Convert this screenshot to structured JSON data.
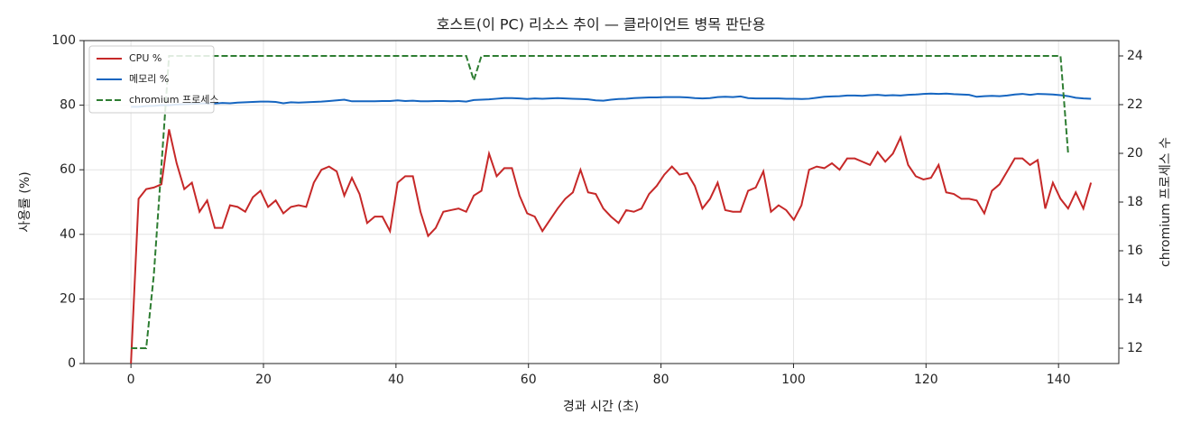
{
  "chart_data": {
    "type": "line",
    "title": "호스트(이 PC) 리소스 추이 — 클라이언트 병목 판단용",
    "xlabel": "경과 시간 (초)",
    "ylabel": "사용률 (%)",
    "y2label": "chromium 프로세스 수",
    "xlim": [
      -7.1,
      149.1
    ],
    "ylim": [
      0,
      100
    ],
    "y2lim": [
      11.37,
      24.63
    ],
    "xticks": [
      0,
      20,
      40,
      60,
      80,
      100,
      120,
      140
    ],
    "yticks": [
      0,
      20,
      40,
      60,
      80,
      100
    ],
    "y2ticks": [
      12,
      14,
      16,
      18,
      20,
      22,
      24
    ],
    "grid": true,
    "legend": "upper-left",
    "x": [
      0,
      1.15,
      2.3,
      3.45,
      4.6,
      5.75,
      6.9,
      8.05,
      9.2,
      10.35,
      11.5,
      12.65,
      13.8,
      14.95,
      16.1,
      17.25,
      18.4,
      19.55,
      20.7,
      21.85,
      23,
      24.15,
      25.3,
      26.45,
      27.6,
      28.75,
      29.9,
      31.05,
      32.2,
      33.35,
      34.5,
      35.65,
      36.8,
      37.95,
      39.1,
      40.25,
      41.4,
      42.55,
      43.7,
      44.85,
      46,
      47.15,
      48.3,
      49.45,
      50.6,
      51.75,
      52.9,
      54.05,
      55.2,
      56.35,
      57.5,
      58.65,
      59.8,
      60.95,
      62.1,
      63.25,
      64.4,
      65.55,
      66.7,
      67.85,
      69,
      70.15,
      71.3,
      72.45,
      73.6,
      74.75,
      75.9,
      77.05,
      78.2,
      79.35,
      80.5,
      81.65,
      82.8,
      83.95,
      85.1,
      86.25,
      87.4,
      88.55,
      89.7,
      90.85,
      92,
      93.15,
      94.3,
      95.45,
      96.6,
      97.75,
      98.9,
      100.05,
      101.2,
      102.35,
      103.5,
      104.65,
      105.8,
      106.95,
      108.1,
      109.25,
      110.4,
      111.55,
      112.7,
      113.85,
      115,
      116.15,
      117.3,
      118.45,
      119.6,
      120.75,
      121.9,
      123.05,
      124.2,
      125.35,
      126.5,
      127.65,
      128.8,
      129.95,
      131.1,
      132.25,
      133.4,
      134.55,
      135.7,
      136.85,
      138,
      139.15,
      140.3,
      141.45,
      142.6,
      143.75,
      144.9
    ],
    "series": [
      {
        "name": "CPU %",
        "color": "#c62828",
        "values": [
          0,
          51,
          54,
          54.5,
          55.5,
          72.5,
          62,
          54,
          56,
          47,
          50.5,
          42,
          42,
          49,
          48.5,
          47,
          51.5,
          53.5,
          48.5,
          50.5,
          46.5,
          48.5,
          49,
          48.5,
          56,
          60,
          61,
          59.5,
          52,
          57.5,
          52.5,
          43.5,
          45.5,
          45.5,
          41,
          56,
          58,
          58,
          47,
          39.5,
          42,
          47,
          47.5,
          48,
          47,
          52,
          53.5,
          65,
          58,
          60.5,
          60.5,
          52,
          46.5,
          45.5,
          41,
          44.5,
          48,
          51,
          53,
          60,
          53,
          52.5,
          48,
          45.5,
          43.5,
          47.5,
          47,
          48,
          52.5,
          55,
          58.5,
          61,
          58.5,
          59,
          55,
          48,
          51,
          56,
          47.5,
          47,
          47,
          53.5,
          54.5,
          59.5,
          47,
          49,
          47.5,
          44.5,
          49,
          60,
          61,
          60.5,
          62,
          60,
          63.5,
          63.5,
          62.5,
          61.5,
          65.5,
          62.5,
          65,
          70,
          61.5,
          58,
          57,
          57.5,
          61.5,
          53,
          52.5,
          51,
          51,
          50.5,
          46.5,
          53.5,
          55.5,
          59.5,
          63.5,
          63.5,
          61.5,
          63,
          48,
          56,
          51,
          48,
          53,
          48,
          56
        ]
      },
      {
        "name": "메모리 %",
        "color": "#1565c0",
        "values": [
          79.5,
          79.5,
          79.7,
          79.8,
          80,
          80,
          80.2,
          80.3,
          80.4,
          80.5,
          80.6,
          80.5,
          80.7,
          80.6,
          80.8,
          80.9,
          81,
          81.1,
          81.1,
          81,
          80.6,
          80.9,
          80.8,
          80.9,
          81,
          81.1,
          81.3,
          81.5,
          81.7,
          81.2,
          81.2,
          81.2,
          81.2,
          81.3,
          81.3,
          81.5,
          81.3,
          81.4,
          81.2,
          81.2,
          81.3,
          81.3,
          81.2,
          81.3,
          81.1,
          81.6,
          81.7,
          81.8,
          82,
          82.2,
          82.2,
          82.1,
          81.9,
          82.1,
          82,
          82.1,
          82.2,
          82.1,
          82,
          81.9,
          81.8,
          81.5,
          81.4,
          81.7,
          81.9,
          82,
          82.2,
          82.3,
          82.4,
          82.4,
          82.5,
          82.5,
          82.5,
          82.4,
          82.2,
          82.1,
          82.2,
          82.5,
          82.6,
          82.5,
          82.7,
          82.2,
          82.1,
          82.1,
          82.1,
          82.1,
          82,
          82,
          81.9,
          82,
          82.3,
          82.6,
          82.7,
          82.8,
          83,
          83,
          82.9,
          83.1,
          83.2,
          83,
          83.1,
          83,
          83.2,
          83.3,
          83.5,
          83.6,
          83.5,
          83.6,
          83.4,
          83.3,
          83.2,
          82.6,
          82.8,
          82.9,
          82.8,
          83,
          83.3,
          83.5,
          83.2,
          83.5,
          83.4,
          83.3,
          83.1,
          82.8,
          82.3,
          82.1,
          82
        ]
      },
      {
        "name": "chromium 프로세스",
        "color": "#2e7d32",
        "dashed": true,
        "axis": "y2",
        "x": [
          0,
          2.3,
          3.45,
          5.75,
          50.6,
          51.75,
          52.9,
          140.3,
          141.45
        ],
        "values": [
          12,
          12,
          15,
          24,
          24,
          23,
          24,
          24,
          20
        ]
      }
    ]
  }
}
